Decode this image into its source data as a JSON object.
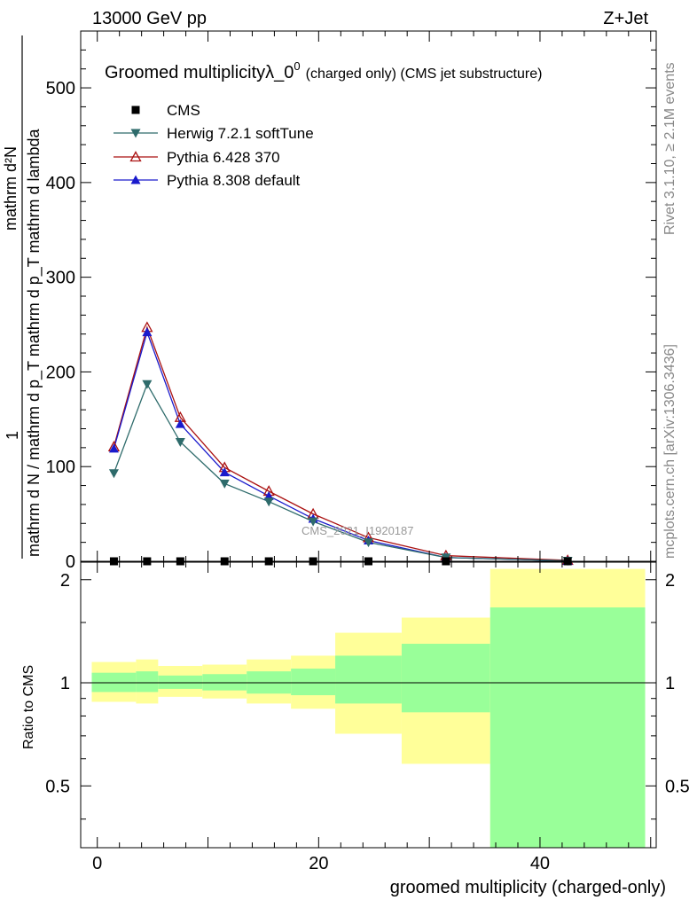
{
  "header": {
    "left": "13000 GeV pp",
    "right": "Z+Jet"
  },
  "plot_title": {
    "main": "Groomed multiplicityλ_0",
    "sup": "0",
    "small": "(charged only) (CMS jet substructure)"
  },
  "side_text": {
    "rivet": "Rivet 3.1.10, ≥ 2.1M events",
    "mcplots": "mcplots.cern.ch [arXiv:1306.3436]"
  },
  "watermark": "CMS_2021_I1920187",
  "colors": {
    "herwig": "#2e6b6b",
    "pythia6": "#aa1111",
    "pythia8": "#1a1acc",
    "band_inner": "#99ff99",
    "band_outer": "#ffff99"
  },
  "chart_data": [
    {
      "type": "line",
      "name": "main",
      "title": "Groomed multiplicityλ_0^0 (charged only) (CMS jet substructure)",
      "ylabel_line1": "mathrm d²N",
      "ylabel_line2": "mathrm d N / mathrm d p_T mathrm d p_T mathrm d lambda",
      "ylabel_prefix": "1",
      "xlim": [
        -1.5,
        50.5
      ],
      "ylim": [
        0,
        560
      ],
      "yticks": [
        0,
        100,
        200,
        300,
        400,
        500
      ],
      "x": [
        1.5,
        4.5,
        7.5,
        11.5,
        15.5,
        19.5,
        24.5,
        31.5,
        42.5
      ],
      "legend": [
        "CMS",
        "Herwig 7.2.1 softTune",
        "Pythia 6.428 370",
        "Pythia 8.308 default"
      ],
      "series": [
        {
          "name": "CMS",
          "marker": "square",
          "values": [
            0,
            0,
            0,
            0,
            0,
            0,
            0,
            0,
            0
          ]
        },
        {
          "name": "Herwig 7.2.1 softTune",
          "marker": "triangle-down",
          "values": [
            93,
            187,
            126,
            82,
            63,
            42,
            20,
            4,
            0.5
          ]
        },
        {
          "name": "Pythia 6.428 370",
          "marker": "triangle-up-open",
          "values": [
            121,
            247,
            152,
            99,
            74,
            50,
            25,
            6,
            1
          ]
        },
        {
          "name": "Pythia 8.308 default",
          "marker": "triangle-up",
          "values": [
            119,
            242,
            145,
            94,
            69,
            45,
            22,
            4,
            0.5
          ]
        }
      ]
    },
    {
      "type": "area",
      "name": "ratio",
      "ylabel": "Ratio to CMS",
      "xlabel": "groomed multiplicity (charged-only)",
      "xlim": [
        -1.5,
        50.5
      ],
      "ylim": [
        0.33,
        2.25
      ],
      "log_y": true,
      "yticks": [
        0.5,
        1,
        2
      ],
      "ytick_labels": [
        "0.5",
        "1",
        "2"
      ],
      "xticks": [
        0,
        20,
        40
      ],
      "xtick_labels": [
        "0",
        "20",
        "40"
      ],
      "reference": 1,
      "bins": [
        {
          "lo": -0.5,
          "hi": 3.5,
          "inner": [
            0.94,
            1.07
          ],
          "outer": [
            0.88,
            1.15
          ]
        },
        {
          "lo": 3.5,
          "hi": 5.5,
          "inner": [
            0.94,
            1.08
          ],
          "outer": [
            0.87,
            1.17
          ]
        },
        {
          "lo": 5.5,
          "hi": 9.5,
          "inner": [
            0.96,
            1.05
          ],
          "outer": [
            0.91,
            1.12
          ]
        },
        {
          "lo": 9.5,
          "hi": 13.5,
          "inner": [
            0.95,
            1.06
          ],
          "outer": [
            0.9,
            1.13
          ]
        },
        {
          "lo": 13.5,
          "hi": 17.5,
          "inner": [
            0.93,
            1.08
          ],
          "outer": [
            0.87,
            1.17
          ]
        },
        {
          "lo": 17.5,
          "hi": 21.5,
          "inner": [
            0.92,
            1.1
          ],
          "outer": [
            0.84,
            1.2
          ]
        },
        {
          "lo": 21.5,
          "hi": 27.5,
          "inner": [
            0.87,
            1.2
          ],
          "outer": [
            0.71,
            1.4
          ]
        },
        {
          "lo": 27.5,
          "hi": 35.5,
          "inner": [
            0.82,
            1.3
          ],
          "outer": [
            0.58,
            1.55
          ]
        },
        {
          "lo": 35.5,
          "hi": 49.5,
          "inner": [
            0.33,
            1.66
          ],
          "outer": [
            0.33,
            2.15
          ]
        }
      ]
    }
  ]
}
